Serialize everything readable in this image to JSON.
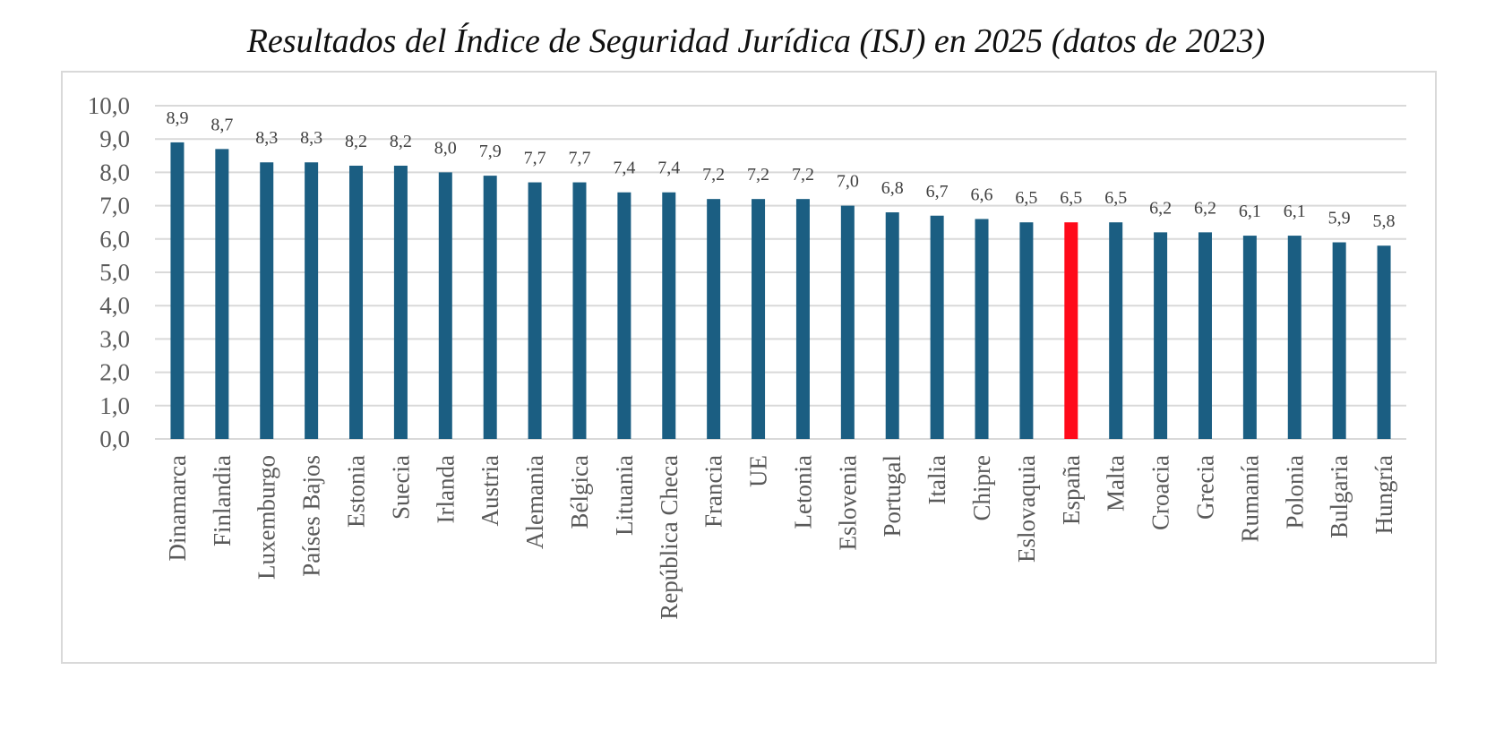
{
  "chart_data": {
    "type": "bar",
    "title": "Resultados del Índice de Seguridad Jurídica (ISJ) en 2025 (datos de 2023)",
    "categories": [
      "Dinamarca",
      "Finlandia",
      "Luxemburgo",
      "Países Bajos",
      "Estonia",
      "Suecia",
      "Irlanda",
      "Austria",
      "Alemania",
      "Bélgica",
      "Lituania",
      "República Checa",
      "Francia",
      "UE",
      "Letonia",
      "Eslovenia",
      "Portugal",
      "Italia",
      "Chipre",
      "Eslovaquia",
      "España",
      "Malta",
      "Croacia",
      "Grecia",
      "Rumanía",
      "Polonia",
      "Bulgaria",
      "Hungría"
    ],
    "values": [
      8.9,
      8.7,
      8.3,
      8.3,
      8.2,
      8.2,
      8.0,
      7.9,
      7.7,
      7.7,
      7.4,
      7.4,
      7.2,
      7.2,
      7.2,
      7.0,
      6.8,
      6.7,
      6.6,
      6.5,
      6.5,
      6.5,
      6.2,
      6.2,
      6.1,
      6.1,
      5.9,
      5.8
    ],
    "data_labels": [
      "8,9",
      "8,7",
      "8,3",
      "8,3",
      "8,2",
      "8,2",
      "8,0",
      "7,9",
      "7,7",
      "7,7",
      "7,4",
      "7,4",
      "7,2",
      "7,2",
      "7,2",
      "7,0",
      "6,8",
      "6,7",
      "6,6",
      "6,5",
      "6,5",
      "6,5",
      "6,2",
      "6,2",
      "6,1",
      "6,1",
      "5,9",
      "5,8"
    ],
    "y_ticks": [
      "0,0",
      "1,0",
      "2,0",
      "3,0",
      "4,0",
      "5,0",
      "6,0",
      "7,0",
      "8,0",
      "9,0",
      "10,0"
    ],
    "xlabel": "",
    "ylabel": "",
    "ylim": [
      0,
      10
    ],
    "grid": true,
    "legend": "none",
    "colors": {
      "bar": "#1b5e82",
      "highlight": "#ff0a1a",
      "grid": "#d9d9d9"
    },
    "highlight_category": "España"
  }
}
